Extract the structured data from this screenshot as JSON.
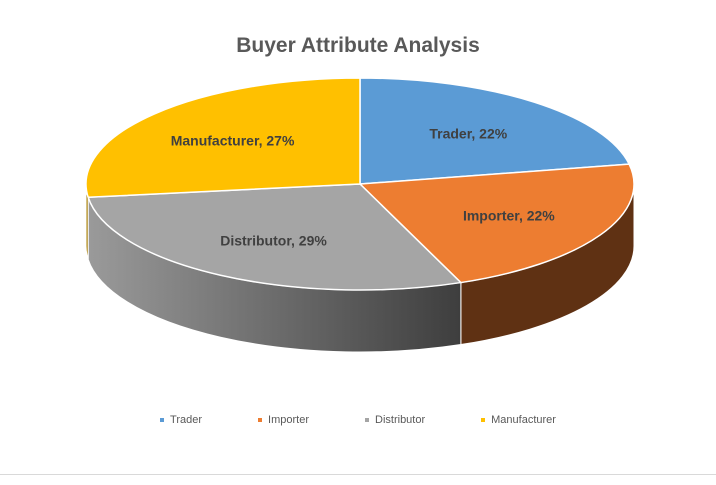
{
  "chart_data": {
    "type": "pie",
    "title": "Buyer Attribute Analysis",
    "categories": [
      "Trader",
      "Importer",
      "Distributor",
      "Manufacturer"
    ],
    "values": [
      22,
      22,
      29,
      27
    ],
    "unit": "%",
    "slice_labels": [
      "Trader, 22%",
      "Importer, 22%",
      "Distributor, 29%",
      "Manufacturer, 27%"
    ],
    "colors": [
      "#5b9bd5",
      "#ed7d31",
      "#a5a5a5",
      "#ffc000"
    ],
    "side_colors": [
      "#3f6f9c",
      "#5f3113",
      "#4a4a4a",
      "#a67c00"
    ],
    "legend_position": "bottom",
    "style": "3d-pie"
  }
}
